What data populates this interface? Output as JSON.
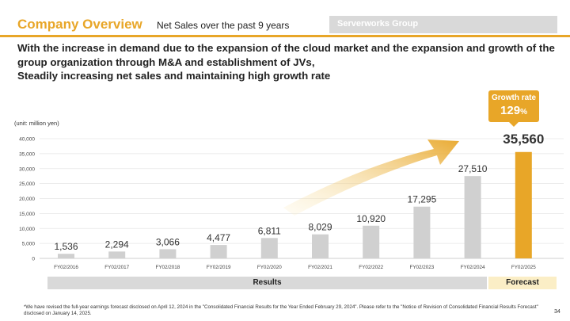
{
  "header": {
    "title": "Company Overview",
    "subtitle": "Net Sales over the past 9 years",
    "group_label": "Serverworks Group"
  },
  "headline": {
    "line1": "With the increase in demand due to the expansion of the cloud market and the expansion and growth of the",
    "line2": "group organization through M&A and establishment of JVs,",
    "line3": "Steadily increasing net sales and maintaining high growth rate"
  },
  "badge": {
    "label": "Growth rate",
    "value": "129",
    "unit": "%"
  },
  "bands": {
    "results": "Results",
    "forecast": "Forecast"
  },
  "footnote": "*We have revised the full-year earnings forecast  disclosed on April 12, 2024 in the \"Consolidated Financial Results for the Year Ended February 29, 2024\". Please refer to the \"Notice of Revision of Consolidated Financial Results Forecast\" disclosed on January 14, 2025.",
  "page_number": "34",
  "colors": {
    "accent": "#e8a628",
    "bar_results": "#d0d0d0",
    "bar_forecast": "#e8a628"
  },
  "chart_data": {
    "type": "bar",
    "unit_label": "(unit: million yen)",
    "categories": [
      "FY02/2016",
      "FY02/2017",
      "FY02/2018",
      "FY02/2019",
      "FY02/2020",
      "FY02/2021",
      "FY02/2022",
      "FY02/2023",
      "FY02/2024",
      "FY02/2025"
    ],
    "values": [
      1536,
      2294,
      3066,
      4477,
      6811,
      8029,
      10920,
      17295,
      27510,
      35560
    ],
    "value_labels": [
      "1,536",
      "2,294",
      "3,066",
      "4,477",
      "6,811",
      "8,029",
      "10,920",
      "17,295",
      "27,510",
      "35,560"
    ],
    "forecast_index": 9,
    "ylim": [
      0,
      40000
    ],
    "yticks": [
      0,
      5000,
      10000,
      15000,
      20000,
      25000,
      30000,
      35000,
      40000
    ],
    "ytick_labels": [
      "0",
      "5,000",
      "10,000",
      "15,000",
      "20,000",
      "25,000",
      "30,000",
      "35,000",
      "40,000"
    ],
    "grid": true,
    "legend": "none"
  }
}
